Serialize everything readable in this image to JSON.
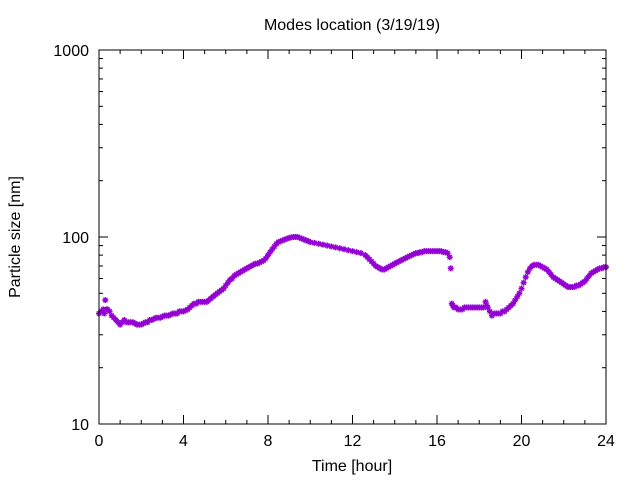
{
  "chart_data": {
    "type": "scatter",
    "title": "Modes location (3/19/19)",
    "xlabel": "Time [hour]",
    "ylabel": "Particle size [nm]",
    "xlim": [
      0,
      24
    ],
    "ylim": [
      10,
      1000
    ],
    "y_scale": "log",
    "grid": false,
    "x_ticks": [
      {
        "value": 0,
        "label": "0"
      },
      {
        "value": 4,
        "label": "4"
      },
      {
        "value": 8,
        "label": "8"
      },
      {
        "value": 12,
        "label": "12"
      },
      {
        "value": 16,
        "label": "16"
      },
      {
        "value": 20,
        "label": "20"
      },
      {
        "value": 24,
        "label": "24"
      }
    ],
    "y_ticks": [
      {
        "value": 10,
        "label": "10"
      },
      {
        "value": 100,
        "label": "100"
      },
      {
        "value": 1000,
        "label": "1000"
      }
    ],
    "marker_color": "#9400d3",
    "series": [
      {
        "points": [
          [
            0.0,
            39
          ],
          [
            0.1,
            40
          ],
          [
            0.2,
            41
          ],
          [
            0.25,
            39
          ],
          [
            0.3,
            46
          ],
          [
            0.35,
            41
          ],
          [
            0.4,
            41
          ],
          [
            0.5,
            40
          ],
          [
            0.6,
            38
          ],
          [
            0.7,
            37
          ],
          [
            0.8,
            36
          ],
          [
            0.9,
            35
          ],
          [
            1.0,
            34
          ],
          [
            1.1,
            35
          ],
          [
            1.2,
            36
          ],
          [
            1.3,
            35
          ],
          [
            1.4,
            35
          ],
          [
            1.5,
            35
          ],
          [
            1.6,
            35
          ],
          [
            1.7,
            34.5
          ],
          [
            1.8,
            34
          ],
          [
            1.9,
            34
          ],
          [
            2.0,
            34
          ],
          [
            2.1,
            34.5
          ],
          [
            2.2,
            35
          ],
          [
            2.3,
            35
          ],
          [
            2.4,
            36
          ],
          [
            2.5,
            36
          ],
          [
            2.6,
            36.5
          ],
          [
            2.7,
            37
          ],
          [
            2.8,
            37
          ],
          [
            2.9,
            37
          ],
          [
            3.0,
            37.5
          ],
          [
            3.1,
            38
          ],
          [
            3.2,
            38
          ],
          [
            3.3,
            38
          ],
          [
            3.4,
            38.5
          ],
          [
            3.5,
            39
          ],
          [
            3.6,
            39
          ],
          [
            3.7,
            39
          ],
          [
            3.8,
            40
          ],
          [
            3.9,
            40
          ],
          [
            4.0,
            40
          ],
          [
            4.1,
            40.5
          ],
          [
            4.2,
            41
          ],
          [
            4.3,
            42
          ],
          [
            4.4,
            43
          ],
          [
            4.5,
            44
          ],
          [
            4.6,
            44
          ],
          [
            4.7,
            45
          ],
          [
            4.8,
            45
          ],
          [
            4.9,
            45
          ],
          [
            5.0,
            45
          ],
          [
            5.1,
            45
          ],
          [
            5.2,
            46
          ],
          [
            5.3,
            47
          ],
          [
            5.4,
            48
          ],
          [
            5.5,
            49
          ],
          [
            5.6,
            50
          ],
          [
            5.7,
            51
          ],
          [
            5.8,
            52
          ],
          [
            5.9,
            53
          ],
          [
            6.0,
            55
          ],
          [
            6.1,
            57
          ],
          [
            6.2,
            59
          ],
          [
            6.3,
            60
          ],
          [
            6.4,
            62
          ],
          [
            6.5,
            63
          ],
          [
            6.6,
            64
          ],
          [
            6.7,
            65
          ],
          [
            6.8,
            66
          ],
          [
            6.9,
            67
          ],
          [
            7.0,
            68
          ],
          [
            7.1,
            69
          ],
          [
            7.2,
            70
          ],
          [
            7.3,
            71
          ],
          [
            7.4,
            72
          ],
          [
            7.5,
            72
          ],
          [
            7.6,
            73
          ],
          [
            7.7,
            74
          ],
          [
            7.8,
            75
          ],
          [
            7.9,
            77
          ],
          [
            8.0,
            80
          ],
          [
            8.1,
            83
          ],
          [
            8.2,
            86
          ],
          [
            8.3,
            89
          ],
          [
            8.4,
            92
          ],
          [
            8.5,
            94
          ],
          [
            8.6,
            95
          ],
          [
            8.7,
            96
          ],
          [
            8.8,
            97
          ],
          [
            8.9,
            98
          ],
          [
            9.0,
            99
          ],
          [
            9.1,
            99.5
          ],
          [
            9.2,
            100
          ],
          [
            9.3,
            100
          ],
          [
            9.4,
            100
          ],
          [
            9.5,
            99
          ],
          [
            9.6,
            98
          ],
          [
            9.7,
            97
          ],
          [
            9.8,
            96
          ],
          [
            9.9,
            95
          ],
          [
            10.0,
            94
          ],
          [
            10.2,
            93
          ],
          [
            10.4,
            92
          ],
          [
            10.6,
            91
          ],
          [
            10.8,
            90
          ],
          [
            11.0,
            89
          ],
          [
            11.2,
            88
          ],
          [
            11.4,
            87
          ],
          [
            11.6,
            86
          ],
          [
            11.8,
            85
          ],
          [
            12.0,
            84
          ],
          [
            12.2,
            83
          ],
          [
            12.4,
            82
          ],
          [
            12.6,
            80
          ],
          [
            12.7,
            78
          ],
          [
            12.8,
            76
          ],
          [
            12.9,
            74
          ],
          [
            13.0,
            72
          ],
          [
            13.1,
            70
          ],
          [
            13.2,
            69
          ],
          [
            13.3,
            68
          ],
          [
            13.4,
            67
          ],
          [
            13.5,
            67
          ],
          [
            13.6,
            68
          ],
          [
            13.7,
            69
          ],
          [
            13.8,
            70
          ],
          [
            13.9,
            71
          ],
          [
            14.0,
            72
          ],
          [
            14.1,
            73
          ],
          [
            14.2,
            74
          ],
          [
            14.3,
            75
          ],
          [
            14.4,
            76
          ],
          [
            14.5,
            77
          ],
          [
            14.6,
            78
          ],
          [
            14.7,
            79
          ],
          [
            14.8,
            80
          ],
          [
            14.9,
            81
          ],
          [
            15.0,
            82
          ],
          [
            15.1,
            82
          ],
          [
            15.2,
            83
          ],
          [
            15.3,
            83
          ],
          [
            15.4,
            84
          ],
          [
            15.5,
            84
          ],
          [
            15.6,
            84
          ],
          [
            15.7,
            84
          ],
          [
            15.8,
            84
          ],
          [
            15.9,
            84
          ],
          [
            16.0,
            84
          ],
          [
            16.1,
            84
          ],
          [
            16.2,
            84
          ],
          [
            16.3,
            83
          ],
          [
            16.4,
            83
          ],
          [
            16.5,
            82
          ],
          [
            16.6,
            78
          ],
          [
            16.65,
            68
          ],
          [
            16.7,
            44
          ],
          [
            16.75,
            43
          ],
          [
            16.8,
            42
          ],
          [
            16.9,
            42
          ],
          [
            17.0,
            41
          ],
          [
            17.1,
            41
          ],
          [
            17.2,
            41
          ],
          [
            17.3,
            42
          ],
          [
            17.4,
            42
          ],
          [
            17.5,
            42
          ],
          [
            17.6,
            42
          ],
          [
            17.7,
            42
          ],
          [
            17.8,
            42
          ],
          [
            17.9,
            42
          ],
          [
            18.0,
            42
          ],
          [
            18.1,
            42
          ],
          [
            18.2,
            42
          ],
          [
            18.3,
            45
          ],
          [
            18.35,
            43
          ],
          [
            18.4,
            42
          ],
          [
            18.5,
            40
          ],
          [
            18.6,
            38
          ],
          [
            18.7,
            39
          ],
          [
            18.8,
            39
          ],
          [
            18.9,
            39
          ],
          [
            19.0,
            39
          ],
          [
            19.1,
            40
          ],
          [
            19.2,
            40
          ],
          [
            19.3,
            41
          ],
          [
            19.4,
            42
          ],
          [
            19.5,
            43
          ],
          [
            19.6,
            44
          ],
          [
            19.7,
            46
          ],
          [
            19.8,
            48
          ],
          [
            19.9,
            50
          ],
          [
            20.0,
            53
          ],
          [
            20.1,
            57
          ],
          [
            20.2,
            61
          ],
          [
            20.3,
            65
          ],
          [
            20.4,
            68
          ],
          [
            20.5,
            70
          ],
          [
            20.6,
            71
          ],
          [
            20.7,
            71
          ],
          [
            20.8,
            71
          ],
          [
            20.9,
            70
          ],
          [
            21.0,
            69
          ],
          [
            21.1,
            68
          ],
          [
            21.2,
            67
          ],
          [
            21.3,
            65
          ],
          [
            21.4,
            63
          ],
          [
            21.5,
            61
          ],
          [
            21.6,
            60
          ],
          [
            21.7,
            59
          ],
          [
            21.8,
            58
          ],
          [
            21.9,
            57
          ],
          [
            22.0,
            56
          ],
          [
            22.1,
            55
          ],
          [
            22.2,
            54
          ],
          [
            22.3,
            54
          ],
          [
            22.4,
            54
          ],
          [
            22.5,
            54
          ],
          [
            22.6,
            55
          ],
          [
            22.7,
            55
          ],
          [
            22.8,
            56
          ],
          [
            22.9,
            57
          ],
          [
            23.0,
            58
          ],
          [
            23.1,
            60
          ],
          [
            23.2,
            62
          ],
          [
            23.3,
            64
          ],
          [
            23.4,
            65
          ],
          [
            23.5,
            66
          ],
          [
            23.6,
            67
          ],
          [
            23.7,
            68
          ],
          [
            23.8,
            68
          ],
          [
            23.9,
            69
          ],
          [
            24.0,
            69
          ]
        ]
      }
    ]
  }
}
